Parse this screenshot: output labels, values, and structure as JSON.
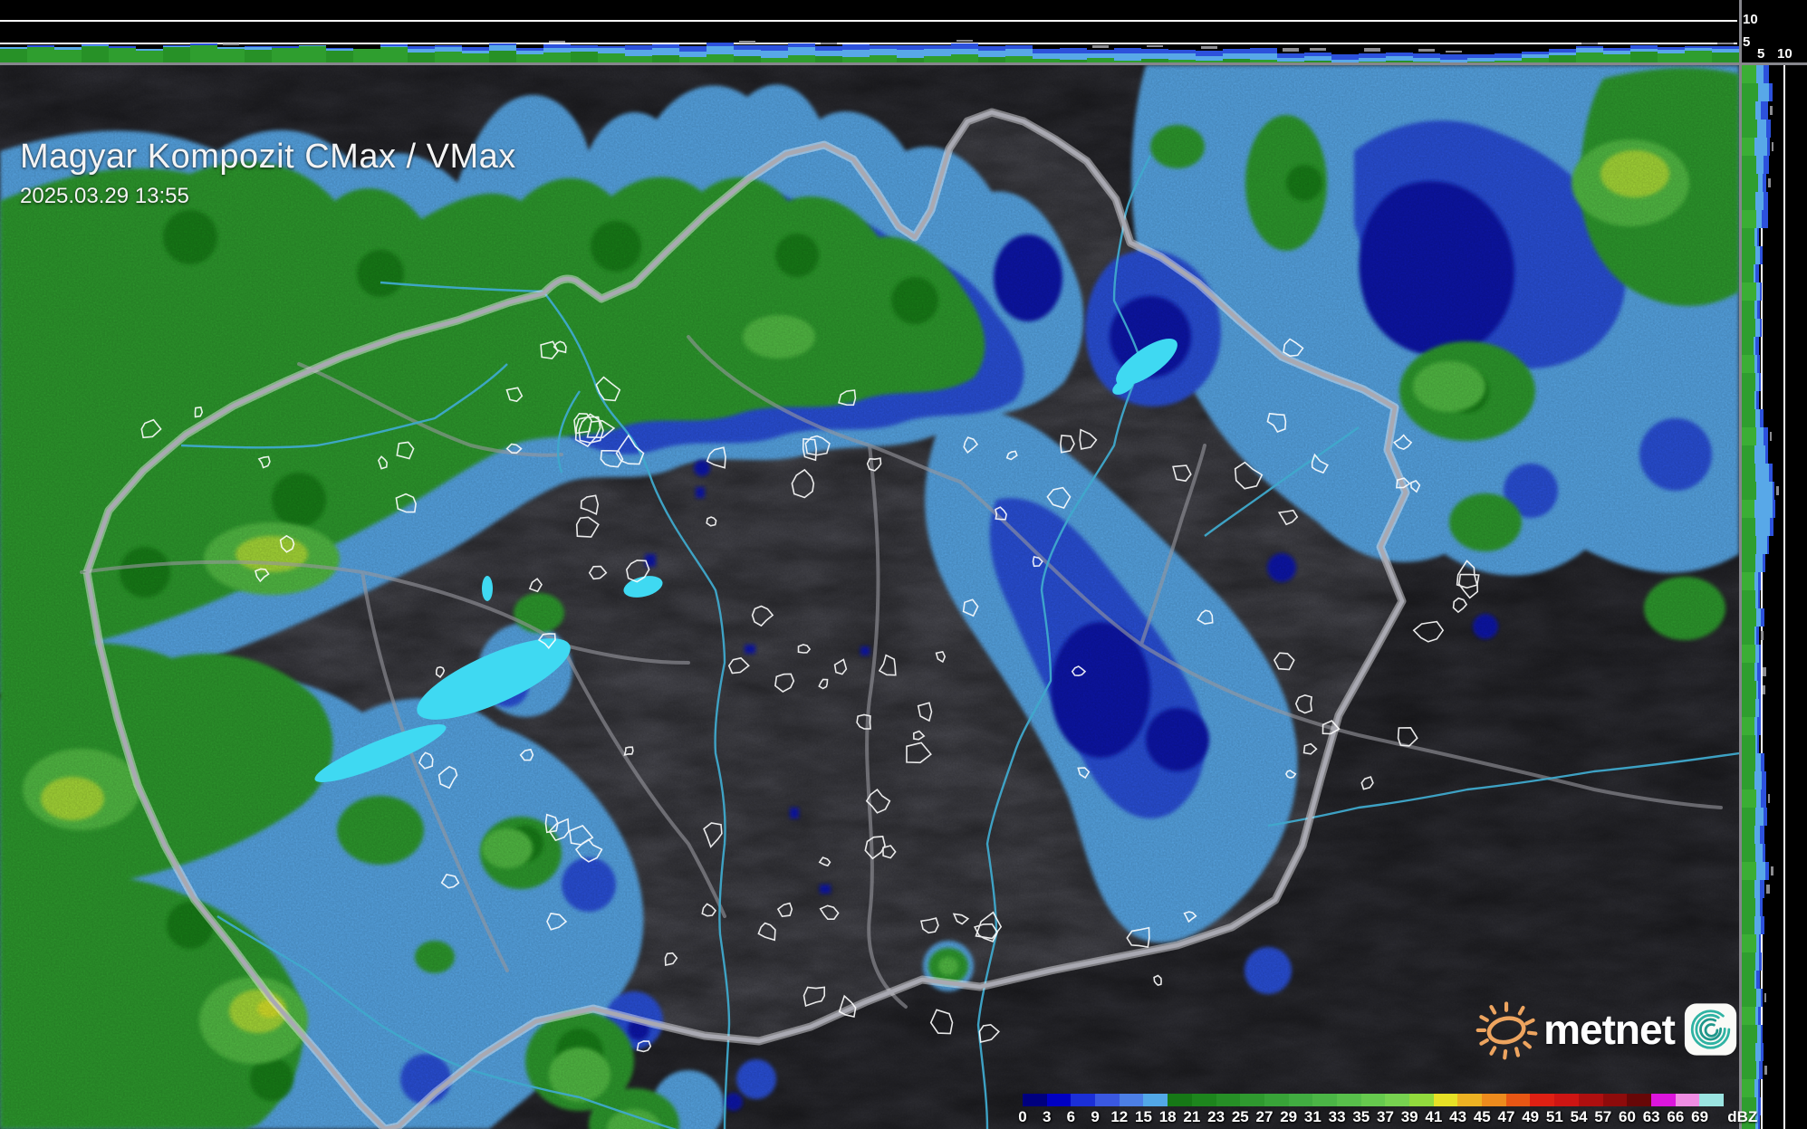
{
  "header": {
    "title": "Magyar Kompozit CMax / VMax",
    "timestamp": "2025.03.29 13:55"
  },
  "logo": {
    "brand": "metnet"
  },
  "axes": {
    "top": {
      "upper": "10",
      "lower": "5"
    },
    "right": {
      "inner": "5",
      "outer": "10"
    }
  },
  "colorbar": {
    "unit": "dBZ",
    "ticks": [
      {
        "label": "0",
        "color": "#00007E"
      },
      {
        "label": "3",
        "color": "#0000C3"
      },
      {
        "label": "6",
        "color": "#1B2FD7"
      },
      {
        "label": "9",
        "color": "#3A58E0"
      },
      {
        "label": "12",
        "color": "#4C7FE5"
      },
      {
        "label": "15",
        "color": "#52A8E7"
      },
      {
        "label": "18",
        "color": "#167816"
      },
      {
        "label": "21",
        "color": "#1D851D"
      },
      {
        "label": "23",
        "color": "#268F26"
      },
      {
        "label": "25",
        "color": "#2F992F"
      },
      {
        "label": "27",
        "color": "#38A338"
      },
      {
        "label": "29",
        "color": "#41AC41"
      },
      {
        "label": "31",
        "color": "#4BB546"
      },
      {
        "label": "33",
        "color": "#58BF4B"
      },
      {
        "label": "35",
        "color": "#66C94E"
      },
      {
        "label": "37",
        "color": "#77D250"
      },
      {
        "label": "39",
        "color": "#92DA3D"
      },
      {
        "label": "41",
        "color": "#E7E126"
      },
      {
        "label": "43",
        "color": "#EDB223"
      },
      {
        "label": "45",
        "color": "#ED8B1D"
      },
      {
        "label": "47",
        "color": "#E75614"
      },
      {
        "label": "49",
        "color": "#DE2013"
      },
      {
        "label": "51",
        "color": "#CE1513"
      },
      {
        "label": "54",
        "color": "#AE0F0F"
      },
      {
        "label": "57",
        "color": "#8E0B0B"
      },
      {
        "label": "60",
        "color": "#670707"
      },
      {
        "label": "63",
        "color": "#DD15DD"
      },
      {
        "label": "66",
        "color": "#EF8DE3"
      },
      {
        "label": "69",
        "color": "#9BE4E1"
      }
    ]
  },
  "profiles": {
    "top": {
      "green": [
        16,
        18,
        15,
        19,
        17,
        14,
        18,
        20,
        16,
        15,
        17,
        19,
        14,
        16,
        18,
        12,
        13,
        11,
        14,
        10,
        12,
        13,
        11,
        8,
        9,
        7,
        10,
        8,
        6,
        9,
        8,
        7,
        9,
        6,
        8,
        10,
        7,
        8,
        5,
        4,
        6,
        3,
        5,
        4,
        3,
        5,
        4,
        2,
        3,
        1,
        2,
        3,
        2,
        1,
        2,
        3,
        6,
        9,
        12,
        10,
        13,
        11,
        14,
        12
      ],
      "light": [
        2,
        0,
        3,
        1,
        0,
        2,
        1,
        0,
        2,
        3,
        0,
        1,
        2,
        0,
        1,
        4,
        5,
        3,
        6,
        4,
        5,
        4,
        6,
        7,
        8,
        6,
        9,
        7,
        8,
        9,
        6,
        8,
        7,
        9,
        8,
        6,
        7,
        8,
        6,
        7,
        5,
        8,
        6,
        7,
        5,
        6,
        7,
        4,
        5,
        3,
        4,
        5,
        4,
        3,
        4,
        3,
        4,
        3,
        5,
        4,
        3,
        4,
        3,
        4
      ],
      "royal": [
        0,
        2,
        0,
        1,
        2,
        0,
        1,
        2,
        0,
        1,
        2,
        0,
        1,
        0,
        2,
        3,
        2,
        4,
        2,
        3,
        4,
        3,
        2,
        5,
        4,
        6,
        4,
        5,
        6,
        4,
        5,
        6,
        4,
        5,
        4,
        6,
        5,
        4,
        5,
        6,
        4,
        6,
        5,
        4,
        6,
        5,
        6,
        5,
        4,
        6,
        5,
        4,
        5,
        6,
        4,
        5,
        3,
        4,
        2,
        3,
        4,
        3,
        2,
        3
      ],
      "gray": [
        0,
        0,
        0,
        0,
        0,
        0,
        0,
        0,
        2,
        0,
        0,
        0,
        0,
        0,
        0,
        0,
        0,
        0,
        0,
        0,
        2,
        0,
        0,
        0,
        0,
        0,
        0,
        3,
        0,
        0,
        2,
        0,
        0,
        0,
        0,
        2,
        0,
        0,
        0,
        0,
        3,
        0,
        2,
        0,
        3,
        0,
        0,
        4,
        3,
        0,
        4,
        0,
        3,
        2,
        0,
        0,
        0,
        0,
        2,
        0,
        0,
        0,
        0,
        2
      ]
    },
    "right": {
      "green": [
        16,
        18,
        15,
        17,
        14,
        16,
        18,
        15,
        16,
        14,
        15,
        13,
        16,
        14,
        15,
        13,
        14,
        15,
        14,
        15,
        16,
        14,
        15,
        16,
        14,
        15,
        16,
        15,
        14,
        15,
        16,
        14,
        15,
        14,
        16,
        15,
        14,
        15,
        15,
        14,
        16,
        15,
        14,
        15,
        16,
        14,
        15,
        14,
        16,
        15,
        14,
        16,
        15,
        17,
        15,
        16,
        14,
        16,
        15
      ],
      "light": [
        8,
        12,
        6,
        10,
        14,
        8,
        5,
        9,
        6,
        3,
        5,
        2,
        4,
        3,
        5,
        2,
        3,
        4,
        2,
        5,
        8,
        12,
        15,
        18,
        20,
        16,
        12,
        8,
        4,
        3,
        5,
        2,
        4,
        3,
        2,
        4,
        3,
        2,
        6,
        8,
        5,
        9,
        6,
        8,
        10,
        6,
        5,
        7,
        3,
        4,
        2,
        5,
        3,
        4,
        6,
        3,
        4,
        2,
        3
      ],
      "royal": [
        6,
        4,
        8,
        5,
        3,
        6,
        4,
        5,
        7,
        2,
        3,
        4,
        2,
        3,
        2,
        4,
        3,
        2,
        3,
        4,
        5,
        3,
        4,
        2,
        3,
        4,
        2,
        3,
        3,
        2,
        4,
        3,
        2,
        4,
        3,
        2,
        4,
        2,
        4,
        5,
        6,
        4,
        5,
        3,
        4,
        5,
        3,
        4,
        2,
        3,
        4,
        2,
        3,
        2,
        3,
        4,
        2,
        3,
        2
      ],
      "gray": [
        0,
        0,
        3,
        0,
        2,
        0,
        3,
        0,
        0,
        0,
        0,
        0,
        0,
        0,
        0,
        0,
        0,
        0,
        0,
        0,
        2,
        0,
        0,
        3,
        0,
        0,
        0,
        0,
        0,
        0,
        0,
        3,
        0,
        4,
        3,
        0,
        0,
        0,
        0,
        0,
        2,
        0,
        0,
        0,
        3,
        4,
        0,
        0,
        0,
        0,
        0,
        2,
        0,
        0,
        0,
        3,
        0,
        0,
        0
      ]
    }
  }
}
